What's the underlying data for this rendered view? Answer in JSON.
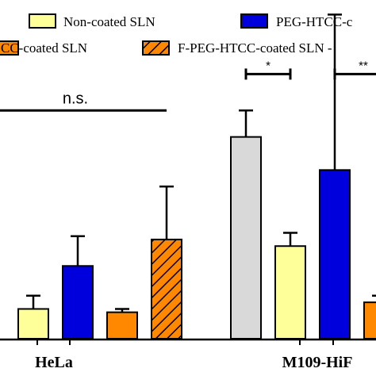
{
  "chart_data": {
    "type": "bar",
    "title": "",
    "xlabel": "",
    "ylabel": "",
    "ylim": [
      0,
      100
    ],
    "grid": false,
    "legend_placement": "top",
    "categories": [
      "HeLa",
      "M109-HiF"
    ],
    "series": [
      {
        "name": "",
        "color": "#d9d9d9",
        "values": [
          null,
          61
        ],
        "errors": [
          null,
          8
        ]
      },
      {
        "name": "Non-coated SLN",
        "color": "#ffff99",
        "values": [
          9,
          28
        ],
        "errors": [
          4,
          4
        ]
      },
      {
        "name": "PEG-HTCC-c",
        "color": "#0000dd",
        "values": [
          22,
          51
        ],
        "errors": [
          9,
          47
        ]
      },
      {
        "name": "",
        "color": "#ff8800",
        "values": [
          8,
          11
        ],
        "errors": [
          1,
          2
        ]
      },
      {
        "name": "F-PEG-HTCC-coated SLN",
        "color": "#ff8800",
        "hatch": true,
        "values": [
          30,
          null
        ],
        "errors": [
          16,
          null
        ]
      }
    ],
    "legend": [
      {
        "label": "Non-coated SLN",
        "color": "#ffff99",
        "hatch": false
      },
      {
        "label": "PEG-HTCC-c",
        "color": "#0000dd",
        "hatch": false
      },
      {
        "label": "CC-coated SLN",
        "color": "#ff8800",
        "hatch": false
      },
      {
        "label": "F-PEG-HTCC-coated SLN -",
        "color": "#ff8800",
        "hatch": true
      }
    ],
    "annotations": [
      {
        "label": "n.s.",
        "group": "HeLa",
        "from_bar": -1,
        "to_bar": 4,
        "y": 69
      },
      {
        "label": "*",
        "group": "M109-HiF",
        "from_bar": 0,
        "to_bar": 1,
        "y": 80
      },
      {
        "label": "**",
        "group": "M109-HiF",
        "from_bar": 2,
        "to_bar": 4,
        "y": 80
      },
      {
        "label": "***",
        "group": "M109-HiF",
        "from_bar": 0,
        "to_bar": 4,
        "y": 117
      },
      {
        "label": "*",
        "group": "M109-HiF",
        "from_bar": 0,
        "to_bar": 4,
        "y": 132
      }
    ]
  }
}
